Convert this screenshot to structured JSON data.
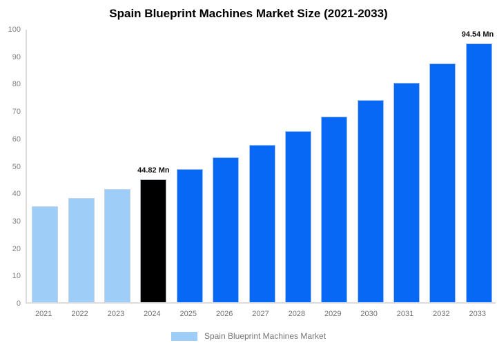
{
  "title": "Spain Blueprint Machines Market Size (2021-2033)",
  "chart_data": {
    "type": "bar",
    "title": "Spain Blueprint Machines Market Size (2021-2033)",
    "categories": [
      "2021",
      "2022",
      "2023",
      "2024",
      "2025",
      "2026",
      "2027",
      "2028",
      "2029",
      "2030",
      "2031",
      "2032",
      "2033"
    ],
    "series": [
      {
        "name": "Spain Blueprint Machines Market",
        "values": [
          34.95,
          37.97,
          41.26,
          44.82,
          48.7,
          52.91,
          57.49,
          62.46,
          67.87,
          73.74,
          80.11,
          87.04,
          94.54
        ]
      }
    ],
    "bar_colors": [
      "#9ECDF8",
      "#9ECDF8",
      "#9ECDF8",
      "#000000",
      "#0768F5",
      "#0768F5",
      "#0768F5",
      "#0768F5",
      "#0768F5",
      "#0768F5",
      "#0768F5",
      "#0768F5",
      "#0768F5"
    ],
    "annotations": [
      {
        "index": 3,
        "text": "44.82 Mn"
      },
      {
        "index": 12,
        "text": "94.54 Mn"
      }
    ],
    "xlabel": "",
    "ylabel": "",
    "ylim": [
      0,
      100
    ],
    "yticks": [
      0,
      10,
      20,
      30,
      40,
      50,
      60,
      70,
      80,
      90,
      100
    ],
    "grid": false,
    "legend": {
      "position": "bottom",
      "label": "Spain Blueprint Machines Market",
      "swatch_color": "#9ECDF8"
    }
  },
  "colors": {
    "background": "#ffffff",
    "axis_line": "#dcdcdc",
    "tick_text": "#808080",
    "xtick_text": "#6f6f6f",
    "legend_text": "#757575",
    "bar_light": "#9ECDF8",
    "bar_highlight": "#000000",
    "bar_forecast": "#0768F5",
    "label_text": "#111111"
  }
}
